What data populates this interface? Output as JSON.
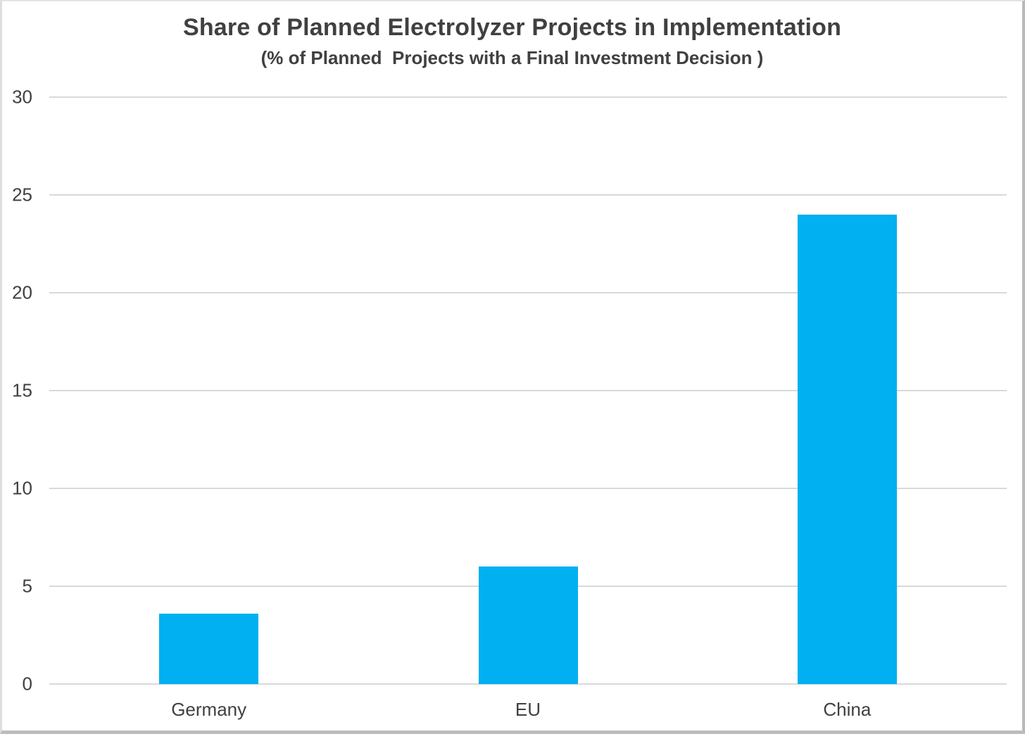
{
  "chart_data": {
    "type": "bar",
    "title": "Share of Planned Electrolyzer Projects in Implementation",
    "subtitle": "(% of Planned  Projects with a Final Investment Decision )",
    "categories": [
      "Germany",
      "EU",
      "China"
    ],
    "values": [
      3.6,
      6,
      24
    ],
    "xlabel": "",
    "ylabel": "",
    "ylim": [
      0,
      30
    ],
    "yticks": [
      0,
      5,
      10,
      15,
      20,
      25,
      30
    ],
    "grid": true,
    "legend": "none",
    "colors": {
      "bar": "#00B0F0",
      "text": "#404040",
      "gridline": "#d9d9d9",
      "background": "#ffffff"
    }
  }
}
